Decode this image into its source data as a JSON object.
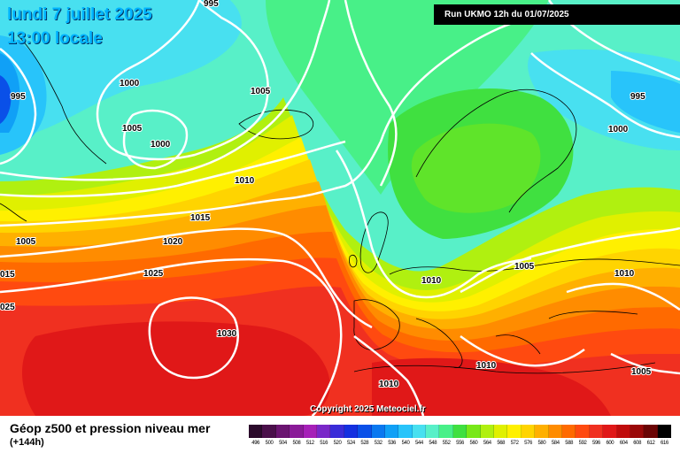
{
  "header": {
    "date": "lundi 7 juillet 2025",
    "time": "13:00 locale",
    "run": "Run UKMO 12h du 01/07/2025"
  },
  "copyright": "Copyright 2025 Meteociel.fr",
  "legend": {
    "title": "Géop z500 et pression niveau mer",
    "subtitle": "(+144h)",
    "scale": [
      {
        "value": "496",
        "color": "#2b0a2b"
      },
      {
        "value": "500",
        "color": "#4a0f4a"
      },
      {
        "value": "504",
        "color": "#6a1470"
      },
      {
        "value": "508",
        "color": "#8a1a98"
      },
      {
        "value": "512",
        "color": "#a620b8"
      },
      {
        "value": "516",
        "color": "#7a28c8"
      },
      {
        "value": "520",
        "color": "#3a2cd8"
      },
      {
        "value": "524",
        "color": "#1430e0"
      },
      {
        "value": "528",
        "color": "#0a50e8"
      },
      {
        "value": "532",
        "color": "#0a78f0"
      },
      {
        "value": "536",
        "color": "#10a0f6"
      },
      {
        "value": "540",
        "color": "#28c4fa"
      },
      {
        "value": "544",
        "color": "#48e0f0"
      },
      {
        "value": "548",
        "color": "#58f0c8"
      },
      {
        "value": "552",
        "color": "#48f088"
      },
      {
        "value": "556",
        "color": "#40e040"
      },
      {
        "value": "560",
        "color": "#78e818"
      },
      {
        "value": "564",
        "color": "#b0f010"
      },
      {
        "value": "568",
        "color": "#e0f000"
      },
      {
        "value": "572",
        "color": "#fff000"
      },
      {
        "value": "576",
        "color": "#ffd400"
      },
      {
        "value": "580",
        "color": "#ffb000"
      },
      {
        "value": "584",
        "color": "#ff8c00"
      },
      {
        "value": "588",
        "color": "#ff6a00"
      },
      {
        "value": "592",
        "color": "#ff4a10"
      },
      {
        "value": "596",
        "color": "#f03020"
      },
      {
        "value": "600",
        "color": "#e01818"
      },
      {
        "value": "604",
        "color": "#c00c0c"
      },
      {
        "value": "608",
        "color": "#9a0808"
      },
      {
        "value": "612",
        "color": "#6a0404"
      },
      {
        "value": "616",
        "color": "#000000"
      }
    ]
  },
  "isobar_labels": [
    {
      "text": "995"
    },
    {
      "text": "995"
    },
    {
      "text": "995"
    },
    {
      "text": "1000"
    },
    {
      "text": "1000"
    },
    {
      "text": "1000"
    },
    {
      "text": "1005"
    },
    {
      "text": "1005"
    },
    {
      "text": "1005"
    },
    {
      "text": "1005"
    },
    {
      "text": "1005"
    },
    {
      "text": "1010"
    },
    {
      "text": "1010"
    },
    {
      "text": "1010"
    },
    {
      "text": "1010"
    },
    {
      "text": "1010"
    },
    {
      "text": "1015"
    },
    {
      "text": "015"
    },
    {
      "text": "1020"
    },
    {
      "text": "1025"
    },
    {
      "text": "025"
    },
    {
      "text": "1030"
    }
  ]
}
